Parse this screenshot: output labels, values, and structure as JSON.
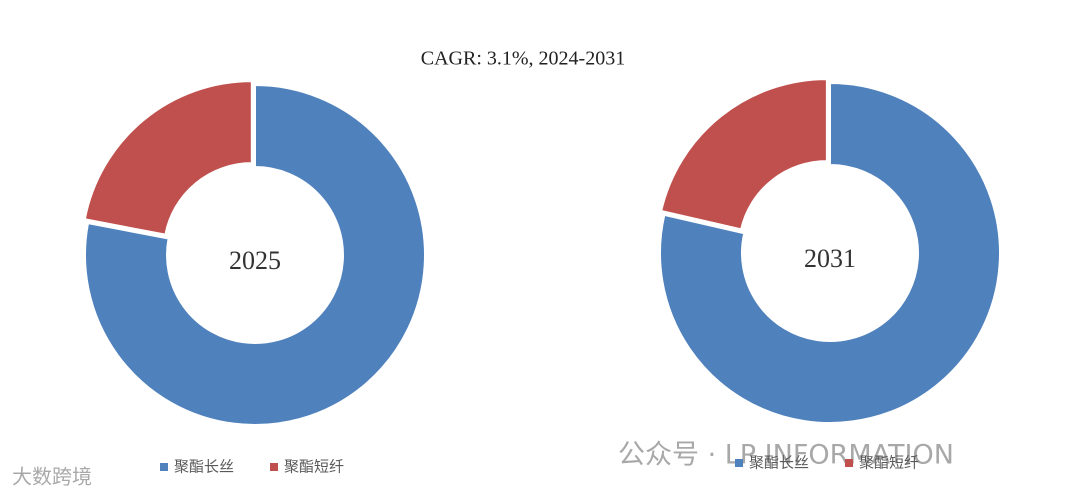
{
  "title": "CAGR:   3.1%, 2024-2031",
  "watermarks": [
    "大数跨境",
    "公众号 · LP INFORMATION"
  ],
  "chart_data": [
    {
      "type": "donut",
      "center_label": "2025",
      "categories": [
        "聚酯长丝",
        "聚酯短纤"
      ],
      "values": [
        78,
        22
      ],
      "colors": [
        "#4f81bd",
        "#c0504d"
      ],
      "legend": "bottom"
    },
    {
      "type": "donut",
      "center_label": "2031",
      "categories": [
        "聚酯长丝",
        "聚酯短纤"
      ],
      "values": [
        78.6,
        21.4
      ],
      "colors": [
        "#4f81bd",
        "#c0504d"
      ],
      "legend": "bottom"
    }
  ]
}
